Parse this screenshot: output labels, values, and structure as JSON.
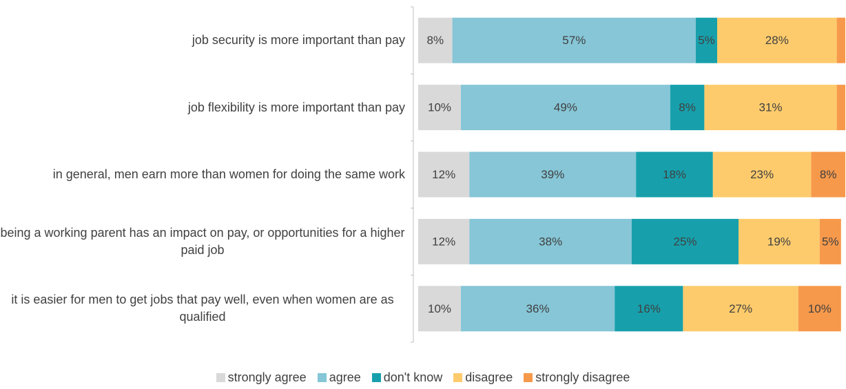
{
  "chart_data": {
    "type": "stacked_bar_horizontal",
    "categories": [
      "job security is more important than pay",
      "job flexibility is more important than pay",
      "in general, men earn more than women for doing the same work",
      "being a working parent has an impact on pay, or opportunities for a higher paid job",
      "it is easier for men to get jobs that pay well, even when women are as qualified"
    ],
    "series": [
      {
        "name": "strongly agree",
        "color": "#d9d9d9",
        "values": [
          8,
          10,
          12,
          12,
          10
        ],
        "value_labels": [
          "8%",
          "10%",
          "12%",
          "12%",
          "10%"
        ]
      },
      {
        "name": "agree",
        "color": "#86c6d7",
        "values": [
          57,
          49,
          39,
          38,
          36
        ],
        "value_labels": [
          "57%",
          "49%",
          "39%",
          "38%",
          "36%"
        ]
      },
      {
        "name": "don't know",
        "color": "#17a0ac",
        "values": [
          5,
          8,
          18,
          25,
          16
        ],
        "value_labels": [
          "5%",
          "8%",
          "18%",
          "25%",
          "16%"
        ]
      },
      {
        "name": "disagree",
        "color": "#fecb6c",
        "values": [
          28,
          31,
          23,
          19,
          27
        ],
        "value_labels": [
          "28%",
          "31%",
          "23%",
          "19%",
          "27%"
        ]
      },
      {
        "name": "strongly disagree",
        "color": "#f7994b",
        "values": [
          2,
          2,
          8,
          5,
          10
        ],
        "value_labels": [
          null,
          null,
          "8%",
          "5%",
          "10%"
        ]
      }
    ],
    "xlim": [
      0,
      100
    ],
    "legend": "bottom"
  }
}
